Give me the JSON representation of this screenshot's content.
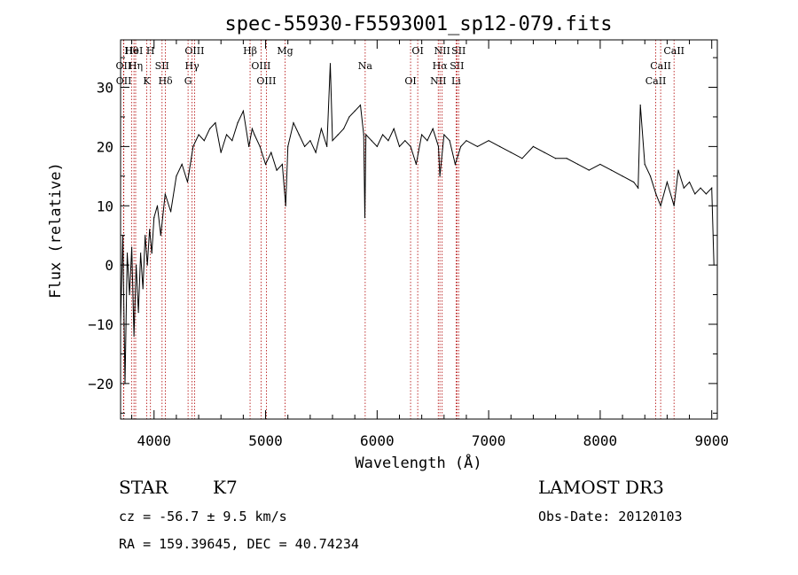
{
  "chart_data": {
    "type": "line",
    "title": "spec-55930-F5593001_sp12-079.fits",
    "xlabel": "Wavelength (Å)",
    "ylabel": "Flux (relative)",
    "xlim": [
      3700,
      9050
    ],
    "ylim": [
      -26,
      38
    ],
    "xticks": [
      4000,
      5000,
      6000,
      7000,
      8000,
      9000
    ],
    "yticks": [
      -20,
      -10,
      0,
      10,
      20,
      30
    ],
    "grid": false,
    "series": [
      {
        "name": "flux",
        "x": [
          3700,
          3720,
          3740,
          3760,
          3780,
          3800,
          3820,
          3840,
          3860,
          3880,
          3900,
          3920,
          3940,
          3960,
          3980,
          4000,
          4030,
          4060,
          4100,
          4150,
          4200,
          4250,
          4300,
          4350,
          4400,
          4450,
          4500,
          4550,
          4600,
          4650,
          4700,
          4750,
          4800,
          4850,
          4880,
          4900,
          4950,
          5000,
          5050,
          5100,
          5150,
          5180,
          5200,
          5250,
          5300,
          5350,
          5400,
          5450,
          5500,
          5550,
          5580,
          5600,
          5650,
          5700,
          5750,
          5800,
          5850,
          5880,
          5890,
          5900,
          5950,
          6000,
          6050,
          6100,
          6150,
          6200,
          6250,
          6300,
          6350,
          6400,
          6450,
          6500,
          6550,
          6563,
          6600,
          6650,
          6700,
          6750,
          6800,
          6900,
          7000,
          7100,
          7200,
          7300,
          7400,
          7500,
          7600,
          7700,
          7800,
          7900,
          8000,
          8100,
          8200,
          8300,
          8340,
          8360,
          8400,
          8450,
          8500,
          8542,
          8600,
          8662,
          8700,
          8750,
          8800,
          8850,
          8900,
          8950,
          9000,
          9020
        ],
        "values": [
          -10,
          5,
          -20,
          2,
          -5,
          3,
          -12,
          0,
          -8,
          2,
          -4,
          5,
          0,
          6,
          2,
          8,
          10,
          5,
          12,
          9,
          15,
          17,
          14,
          20,
          22,
          21,
          23,
          24,
          19,
          22,
          21,
          24,
          26,
          20,
          23,
          22,
          20,
          17,
          19,
          16,
          17,
          10,
          20,
          24,
          22,
          20,
          21,
          19,
          23,
          20,
          34,
          21,
          22,
          23,
          25,
          26,
          27,
          22,
          8,
          22,
          21,
          20,
          22,
          21,
          23,
          20,
          21,
          20,
          17,
          22,
          21,
          23,
          20,
          15,
          22,
          21,
          17,
          20,
          21,
          20,
          21,
          20,
          19,
          18,
          20,
          19,
          18,
          18,
          17,
          16,
          17,
          16,
          15,
          14,
          13,
          27,
          17,
          15,
          12,
          10,
          14,
          10,
          16,
          13,
          14,
          12,
          13,
          12,
          13,
          0
        ]
      }
    ],
    "spectral_lines": [
      {
        "label": "Hθ",
        "wavelength": 3798
      },
      {
        "label": "OII",
        "wavelength": 3727
      },
      {
        "label": "OII",
        "wavelength": 3729
      },
      {
        "label": "HeI",
        "wavelength": 3820
      },
      {
        "label": "Hη",
        "wavelength": 3835
      },
      {
        "label": "K",
        "wavelength": 3934
      },
      {
        "label": "H",
        "wavelength": 3968
      },
      {
        "label": "SII",
        "wavelength": 4072
      },
      {
        "label": "Hδ",
        "wavelength": 4102
      },
      {
        "label": "OIII",
        "wavelength": 4363
      },
      {
        "label": "Hγ",
        "wavelength": 4341
      },
      {
        "label": "G",
        "wavelength": 4305
      },
      {
        "label": "Hβ",
        "wavelength": 4861
      },
      {
        "label": "OIII",
        "wavelength": 4959
      },
      {
        "label": "OIII",
        "wavelength": 5007
      },
      {
        "label": "Mg",
        "wavelength": 5175
      },
      {
        "label": "Na",
        "wavelength": 5893
      },
      {
        "label": "OI",
        "wavelength": 6300
      },
      {
        "label": "OI",
        "wavelength": 6364
      },
      {
        "label": "Hα",
        "wavelength": 6563
      },
      {
        "label": "NII",
        "wavelength": 6548
      },
      {
        "label": "NII",
        "wavelength": 6583
      },
      {
        "label": "SII",
        "wavelength": 6716
      },
      {
        "label": "Li",
        "wavelength": 6708
      },
      {
        "label": "SII",
        "wavelength": 6731
      },
      {
        "label": "CaII",
        "wavelength": 8542
      },
      {
        "label": "CaII",
        "wavelength": 8498
      },
      {
        "label": "CaII",
        "wavelength": 8662
      }
    ]
  },
  "info": {
    "object_class": "STAR",
    "subclass": "K7",
    "cz": "cz = -56.7 ± 9.5 km/s",
    "coords": "RA = 159.39645, DEC =  40.74234",
    "survey": "LAMOST DR3",
    "obs_date": "Obs-Date: 20120103"
  }
}
